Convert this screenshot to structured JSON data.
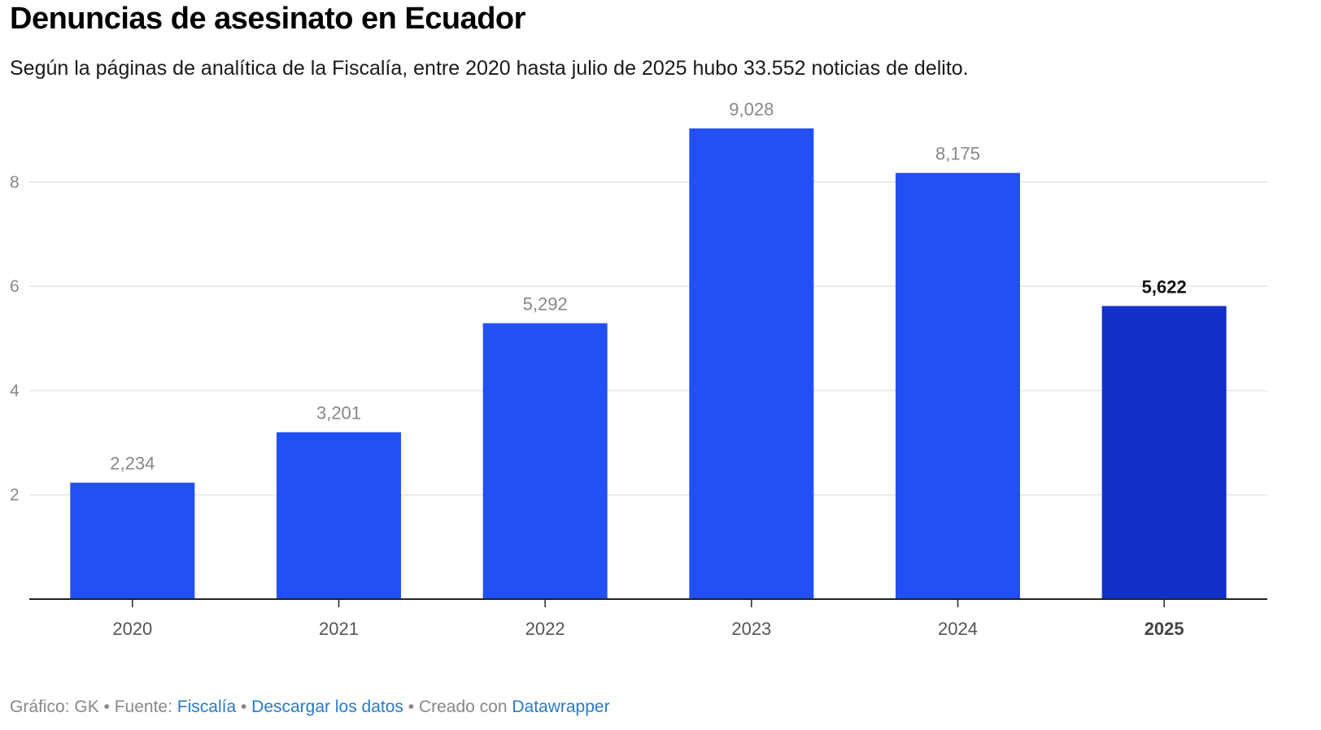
{
  "title": "Denuncias de asesinato en Ecuador",
  "subtitle": "Según la páginas de analítica de la Fiscalía, entre 2020 hasta julio de 2025 hubo 33.552 noticias de delito.",
  "chart_data": {
    "type": "bar",
    "categories": [
      "2020",
      "2021",
      "2022",
      "2023",
      "2024",
      "2025"
    ],
    "values": [
      2.234,
      3.201,
      5.292,
      9.028,
      8.175,
      5.622
    ],
    "value_labels": [
      "2,234",
      "3,201",
      "5,292",
      "9,028",
      "8,175",
      "5,622"
    ],
    "highlight_index": 5,
    "y_ticks": [
      2,
      4,
      6,
      8
    ],
    "ylim": [
      0,
      9.028
    ],
    "grid": true,
    "colors": {
      "bar": "#2250f4",
      "highlight": "#1230c8",
      "grid": "#e4e4e4",
      "axis": "#222222"
    }
  },
  "footer": {
    "prefix": "Gráfico: GK • Fuente: ",
    "source": "Fiscalía",
    "sep": " • ",
    "download": "Descargar los datos",
    "created": " • Creado con ",
    "tool": "Datawrapper"
  }
}
